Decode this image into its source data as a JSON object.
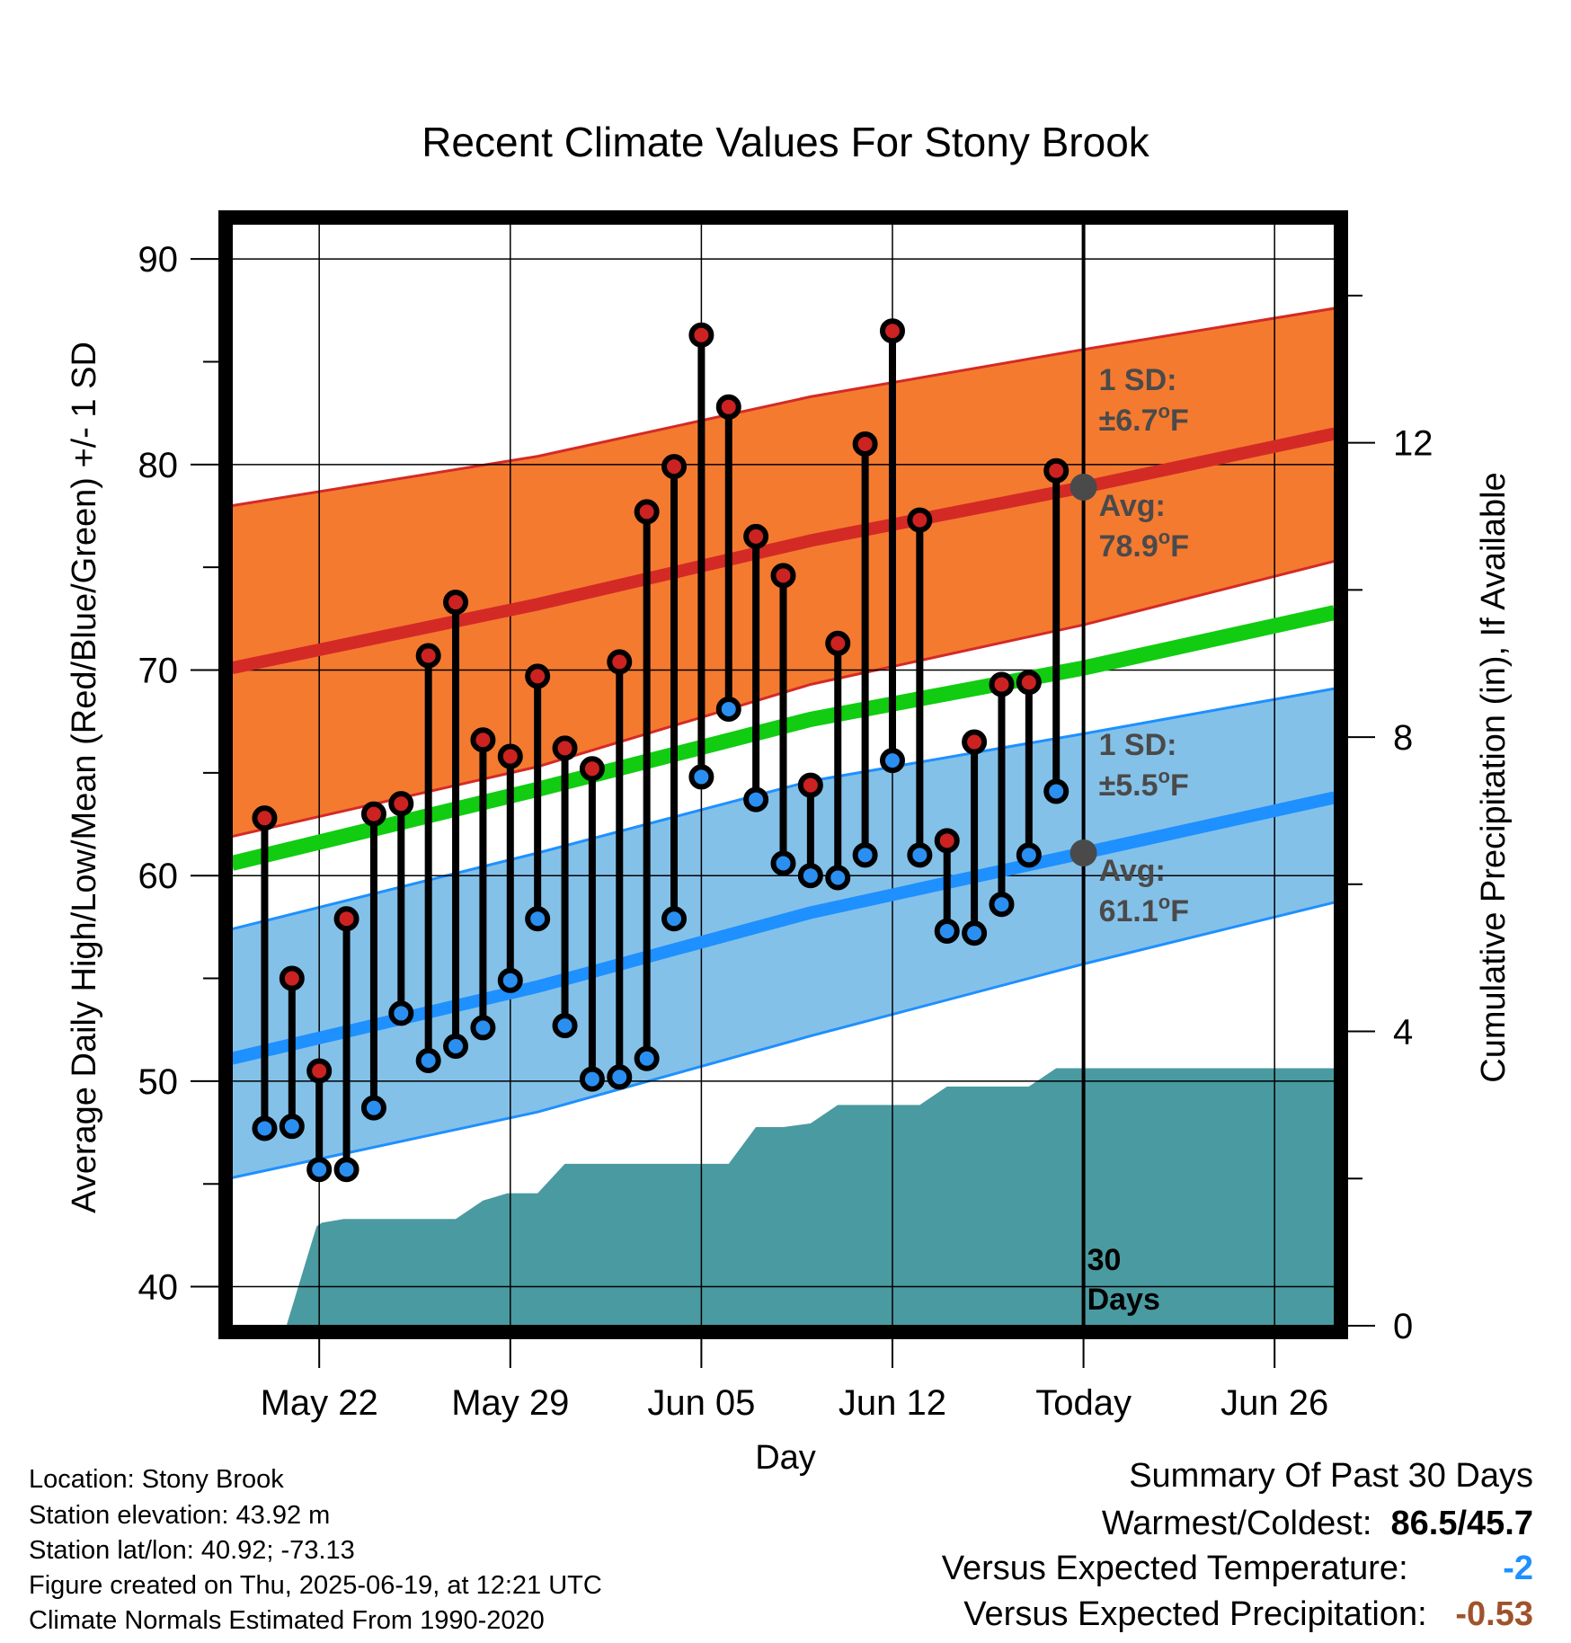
{
  "title": "Recent Climate Values For Stony Brook",
  "chart_data": {
    "type": "line",
    "x_label": "Day",
    "y_label_left": "Average Daily High/Low/Mean (Red/Blue/Green) +/- 1 SD",
    "y_label_right": "Cumulative Precipitation (in), If Available",
    "y_ticks_left": [
      40,
      50,
      60,
      70,
      80,
      90
    ],
    "y_ticks_right": [
      0,
      4,
      8,
      12
    ],
    "x_ticks": [
      {
        "label": "May 22",
        "day": 22
      },
      {
        "label": "May 29",
        "day": 29
      },
      {
        "label": "Jun 05",
        "day": 36
      },
      {
        "label": "Jun 12",
        "day": 43
      },
      {
        "label": "Today",
        "day": 50
      },
      {
        "label": "Jun 26",
        "day": 57
      }
    ],
    "xlim": [
      18.8,
      59.2
    ],
    "ylim_left": [
      38.1,
      91.8
    ],
    "ylim_right": [
      0,
      15
    ],
    "today_day": 50,
    "normals": {
      "days": [
        18.8,
        30,
        40,
        50,
        59.2
      ],
      "avg_high": [
        70.1,
        73.2,
        76.3,
        78.9,
        81.5
      ],
      "high_upper": [
        78.0,
        80.4,
        83.3,
        85.6,
        87.6
      ],
      "high_lower": [
        61.9,
        65.3,
        69.3,
        72.2,
        75.3
      ],
      "avg_low": [
        51.1,
        54.6,
        58.2,
        61.1,
        63.8
      ],
      "low_upper": [
        57.4,
        61.1,
        64.6,
        66.9,
        69.1
      ],
      "low_lower": [
        45.3,
        48.5,
        52.2,
        55.7,
        58.7
      ],
      "avg_mean": [
        60.6,
        64.2,
        67.6,
        70.1,
        72.8
      ]
    },
    "daily": {
      "days": [
        20,
        21,
        22,
        23,
        24,
        25,
        26,
        27,
        28,
        29,
        30,
        31,
        32,
        33,
        34,
        35,
        36,
        37,
        38,
        39,
        40,
        41,
        42,
        43,
        44,
        45,
        46,
        47,
        48,
        49
      ],
      "highs": [
        62.8,
        55.0,
        50.5,
        57.9,
        63.0,
        63.5,
        70.7,
        73.3,
        66.6,
        65.8,
        69.7,
        66.2,
        65.2,
        70.4,
        77.7,
        79.9,
        86.3,
        82.8,
        76.5,
        74.6,
        64.4,
        71.3,
        81.0,
        86.5,
        77.3,
        61.7,
        66.5,
        69.3,
        69.4,
        79.7
      ],
      "lows": [
        47.7,
        47.8,
        45.7,
        45.7,
        48.7,
        53.3,
        51.0,
        51.7,
        52.6,
        54.9,
        57.9,
        52.7,
        50.1,
        50.2,
        51.1,
        57.9,
        64.8,
        68.1,
        63.7,
        60.6,
        60.0,
        59.9,
        61.0,
        65.6,
        61.0,
        57.3,
        57.2,
        58.6,
        61.0,
        64.1
      ]
    },
    "precip": {
      "days": [
        18.8,
        20.8,
        21.9,
        22.1,
        22.9,
        23.3,
        24,
        25,
        26,
        27,
        28,
        28.9,
        29.5,
        30,
        31,
        32,
        33,
        34,
        35,
        36,
        37,
        38,
        39,
        40,
        41,
        42,
        43,
        44,
        45,
        46,
        47,
        48,
        49,
        50,
        51,
        59.2
      ],
      "values": [
        0,
        0,
        1.35,
        1.4,
        1.45,
        1.45,
        1.45,
        1.45,
        1.45,
        1.45,
        1.7,
        1.8,
        1.8,
        1.8,
        2.2,
        2.2,
        2.2,
        2.2,
        2.2,
        2.2,
        2.2,
        2.7,
        2.7,
        2.75,
        3.0,
        3.0,
        3.0,
        3.0,
        3.25,
        3.25,
        3.25,
        3.25,
        3.5,
        3.5,
        3.5,
        3.5
      ]
    },
    "annotations": {
      "high_sd": {
        "line1": "1 SD:",
        "line2": "±6.7",
        "unit": "F"
      },
      "high_avg": {
        "line1": "Avg:",
        "line2": "78.9",
        "unit": "F"
      },
      "low_sd": {
        "line1": "1 SD:",
        "line2": "±5.5",
        "unit": "F"
      },
      "low_avg": {
        "line1": "Avg:",
        "line2": "61.1",
        "unit": "F"
      },
      "degree": "o",
      "days_line1": "30",
      "days_line2": "Days"
    },
    "colors": {
      "high_band": "#f47a30",
      "high_line": "#d42a26",
      "low_band": "#84c1e8",
      "low_line": "#1e90ff",
      "mean_line": "#11cc11",
      "precip": "#4a9aa1",
      "high_dot": "#cc2222",
      "low_dot": "#2a8ff0",
      "annotation": "#4a4a4a"
    }
  },
  "info": {
    "location": "Location: Stony Brook",
    "elevation": "Station elevation: 43.92 m",
    "latlon": "Station lat/lon: 40.92; -73.13",
    "created": "Figure created on Thu, 2025-06-19, at 12:21 UTC",
    "normals": "Climate Normals Estimated From 1990-2020"
  },
  "summary": {
    "heading": "Summary Of Past 30 Days",
    "warm_label": "Warmest/Coldest:",
    "warm_value": "86.5/45.7",
    "temp_label": "Versus Expected Temperature:",
    "temp_value": "-2",
    "temp_color": "#1e90ff",
    "precip_label": "Versus Expected Precipitation:",
    "precip_value": "-0.53",
    "precip_color": "#a0522d"
  }
}
